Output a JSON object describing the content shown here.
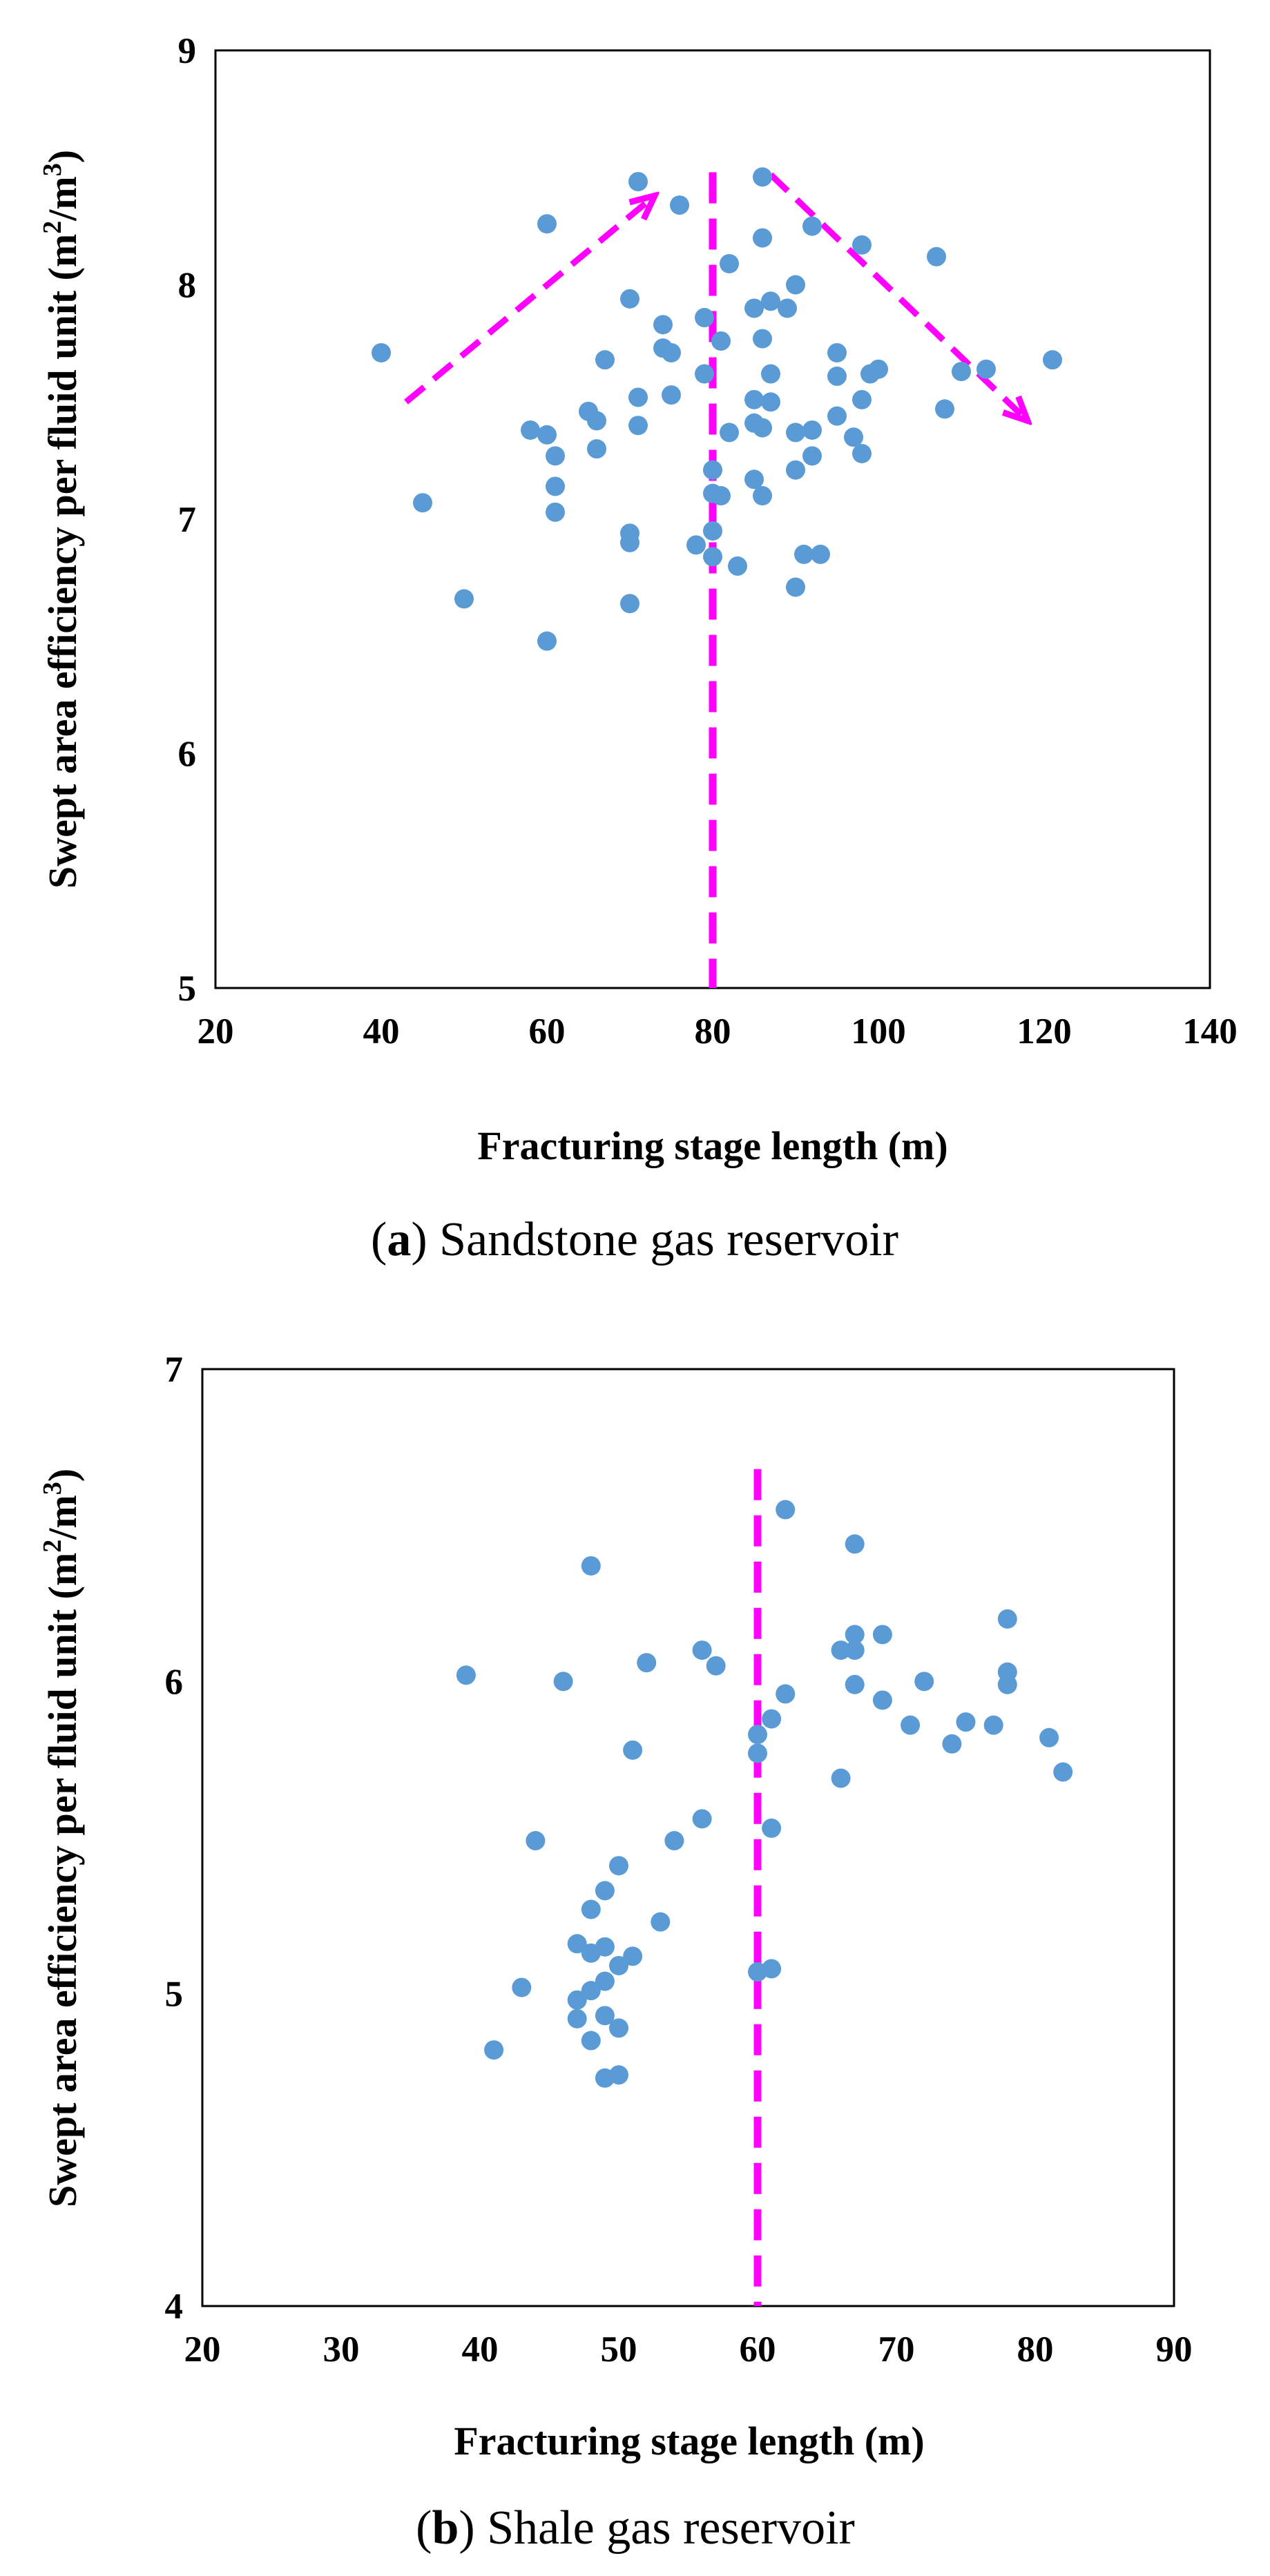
{
  "chart_data": [
    {
      "type": "scatter",
      "panel": "a",
      "caption": {
        "letter": "a",
        "text": " Sandstone gas reservoir"
      },
      "xlabel": "Fracturing stage length (m)",
      "ylabel_main": "Swept area efficiency per fluid unit (m",
      "ylabel_sup1": "2",
      "ylabel_mid": "/m",
      "ylabel_sup2": "3",
      "ylabel_end": ")",
      "xlim": [
        20,
        140
      ],
      "ylim": [
        5,
        9
      ],
      "xticks": [
        "20",
        "40",
        "60",
        "80",
        "100",
        "120",
        "140"
      ],
      "yticks": [
        "5",
        "6",
        "7",
        "8",
        "9"
      ],
      "marker_color": "#5b9bd5",
      "annotation_color": "#ff00ff",
      "vline_x": 80,
      "vline_ytop": 8.48,
      "arrows": [
        {
          "from": [
            43,
            7.5
          ],
          "to": [
            73,
            8.38
          ]
        },
        {
          "from": [
            87,
            8.47
          ],
          "to": [
            118,
            7.42
          ]
        }
      ],
      "points": [
        [
          40,
          7.71
        ],
        [
          45,
          7.07
        ],
        [
          50,
          6.66
        ],
        [
          58,
          7.38
        ],
        [
          60,
          7.36
        ],
        [
          60,
          6.48
        ],
        [
          60,
          8.26
        ],
        [
          61,
          7.27
        ],
        [
          61,
          7.14
        ],
        [
          61,
          7.03
        ],
        [
          65,
          7.46
        ],
        [
          66,
          7.42
        ],
        [
          66,
          7.3
        ],
        [
          67,
          7.68
        ],
        [
          70,
          7.94
        ],
        [
          70,
          6.94
        ],
        [
          70,
          6.9
        ],
        [
          70,
          6.64
        ],
        [
          71,
          7.52
        ],
        [
          71,
          7.4
        ],
        [
          71,
          8.44
        ],
        [
          74,
          7.83
        ],
        [
          74,
          7.73
        ],
        [
          75,
          7.71
        ],
        [
          75,
          7.53
        ],
        [
          76,
          8.34
        ],
        [
          79,
          7.86
        ],
        [
          79,
          7.62
        ],
        [
          80,
          7.21
        ],
        [
          80,
          7.11
        ],
        [
          80,
          6.95
        ],
        [
          80,
          6.84
        ],
        [
          78,
          6.89
        ],
        [
          81,
          7.76
        ],
        [
          81,
          7.1
        ],
        [
          82,
          8.09
        ],
        [
          82,
          7.37
        ],
        [
          83,
          6.8
        ],
        [
          85,
          7.9
        ],
        [
          85,
          7.51
        ],
        [
          85,
          7.41
        ],
        [
          85,
          7.17
        ],
        [
          86,
          8.46
        ],
        [
          86,
          8.2
        ],
        [
          86,
          7.77
        ],
        [
          86,
          7.39
        ],
        [
          86,
          7.1
        ],
        [
          87,
          7.93
        ],
        [
          87,
          7.62
        ],
        [
          87,
          7.5
        ],
        [
          89,
          7.9
        ],
        [
          90,
          8.0
        ],
        [
          90,
          7.37
        ],
        [
          90,
          7.21
        ],
        [
          90,
          6.71
        ],
        [
          91,
          6.85
        ],
        [
          92,
          8.25
        ],
        [
          92,
          7.38
        ],
        [
          92,
          7.27
        ],
        [
          93,
          6.85
        ],
        [
          95,
          7.71
        ],
        [
          95,
          7.61
        ],
        [
          95,
          7.44
        ],
        [
          97,
          7.35
        ],
        [
          98,
          8.17
        ],
        [
          98,
          7.51
        ],
        [
          98,
          7.28
        ],
        [
          99,
          7.62
        ],
        [
          100,
          7.64
        ],
        [
          107,
          8.12
        ],
        [
          108,
          7.47
        ],
        [
          110,
          7.63
        ],
        [
          113,
          7.64
        ],
        [
          121,
          7.68
        ]
      ]
    },
    {
      "type": "scatter",
      "panel": "b",
      "caption": {
        "letter": "b",
        "text": " Shale gas reservoir"
      },
      "xlabel": "Fracturing stage length (m)",
      "ylabel_main": "Swept area efficiency per fluid unit (m",
      "ylabel_sup1": "2",
      "ylabel_mid": "/m",
      "ylabel_sup2": "3",
      "ylabel_end": ")",
      "xlim": [
        20,
        90
      ],
      "ylim": [
        4,
        7
      ],
      "xticks": [
        "20",
        "30",
        "40",
        "50",
        "60",
        "70",
        "80",
        "90"
      ],
      "yticks": [
        "4",
        "5",
        "6",
        "7"
      ],
      "marker_color": "#5b9bd5",
      "annotation_color": "#ff00ff",
      "vline_x": 60,
      "vline_ytop": 6.68,
      "arrows": [],
      "points": [
        [
          39,
          6.02
        ],
        [
          41,
          4.82
        ],
        [
          43,
          5.02
        ],
        [
          44,
          5.49
        ],
        [
          46,
          6.0
        ],
        [
          47,
          5.16
        ],
        [
          47,
          4.98
        ],
        [
          47,
          4.92
        ],
        [
          48,
          6.37
        ],
        [
          48,
          5.27
        ],
        [
          48,
          5.13
        ],
        [
          48,
          5.01
        ],
        [
          48,
          4.85
        ],
        [
          49,
          5.33
        ],
        [
          49,
          5.15
        ],
        [
          49,
          5.04
        ],
        [
          49,
          4.93
        ],
        [
          49,
          4.73
        ],
        [
          50,
          5.41
        ],
        [
          50,
          5.09
        ],
        [
          50,
          4.89
        ],
        [
          50,
          4.74
        ],
        [
          51,
          5.78
        ],
        [
          51,
          5.12
        ],
        [
          52,
          6.06
        ],
        [
          53,
          5.23
        ],
        [
          54,
          5.49
        ],
        [
          56,
          6.1
        ],
        [
          56,
          5.56
        ],
        [
          57,
          6.05
        ],
        [
          60,
          5.83
        ],
        [
          60,
          5.77
        ],
        [
          60,
          5.07
        ],
        [
          61,
          5.88
        ],
        [
          61,
          5.53
        ],
        [
          61,
          5.08
        ],
        [
          62,
          6.55
        ],
        [
          62,
          5.96
        ],
        [
          66,
          5.69
        ],
        [
          66,
          6.1
        ],
        [
          67,
          6.44
        ],
        [
          67,
          6.15
        ],
        [
          67,
          6.1
        ],
        [
          67,
          5.99
        ],
        [
          69,
          6.15
        ],
        [
          69,
          5.94
        ],
        [
          71,
          5.86
        ],
        [
          72,
          6.0
        ],
        [
          74,
          5.8
        ],
        [
          75,
          5.87
        ],
        [
          77,
          5.86
        ],
        [
          78,
          6.2
        ],
        [
          78,
          6.03
        ],
        [
          78,
          5.99
        ],
        [
          81,
          5.82
        ],
        [
          82,
          5.71
        ]
      ]
    }
  ]
}
